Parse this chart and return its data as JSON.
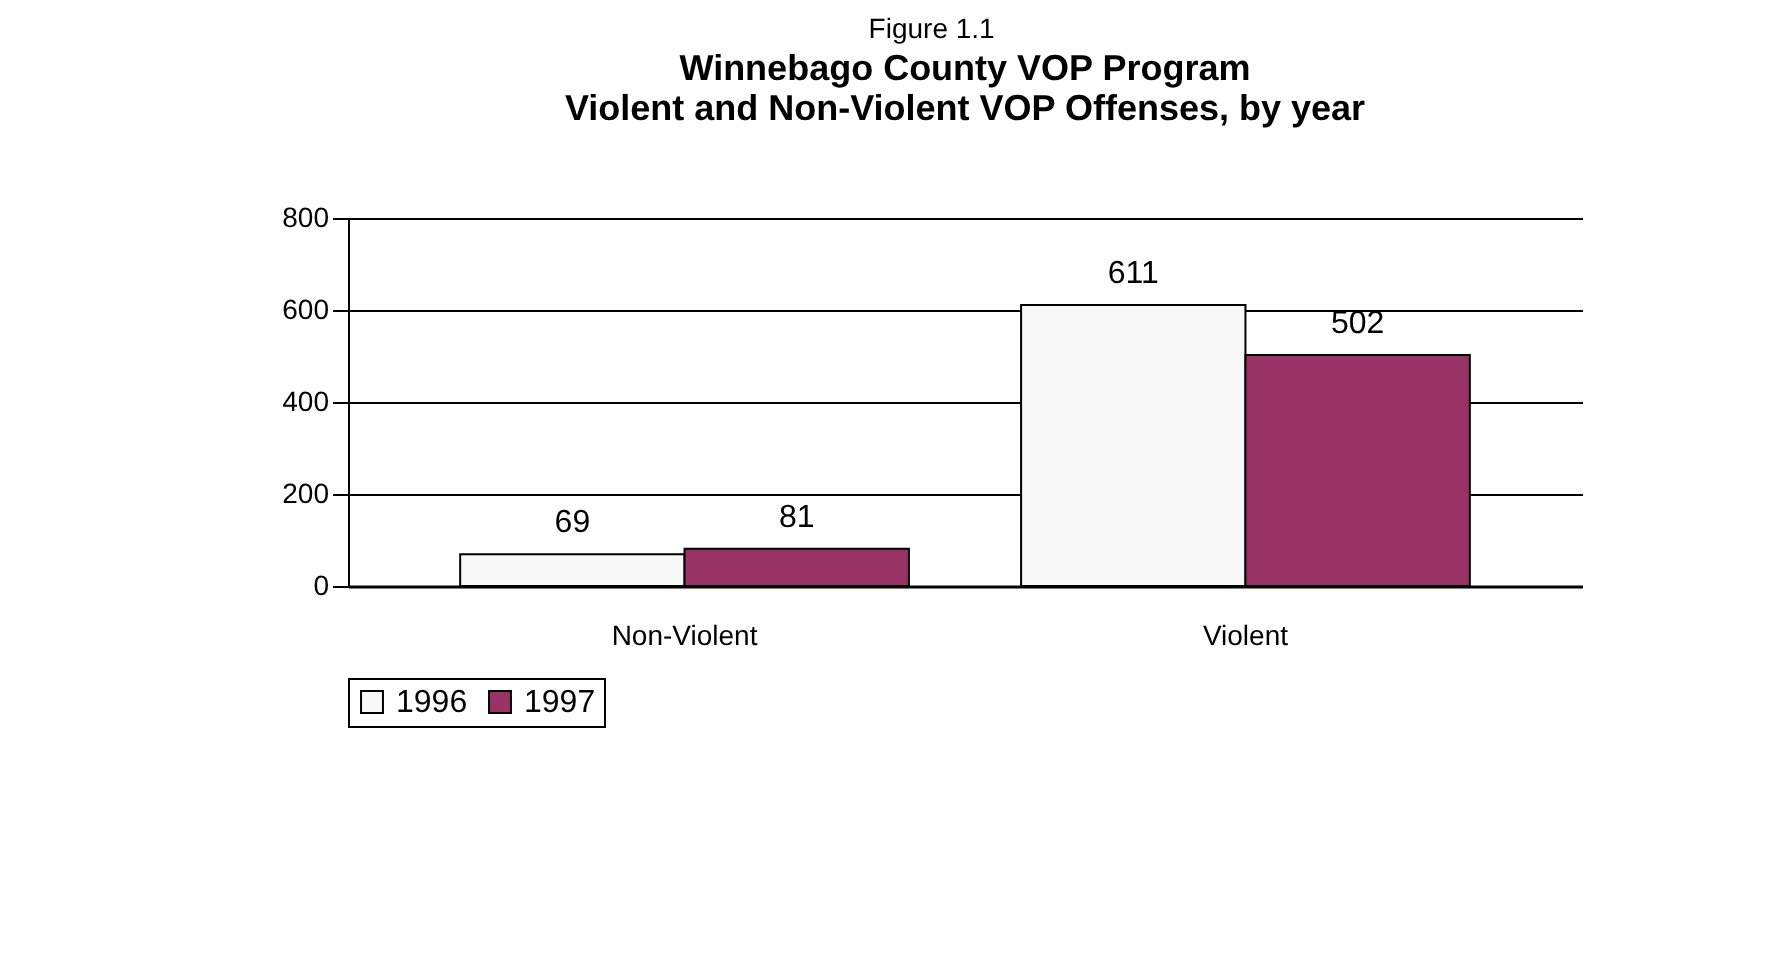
{
  "chart_data": {
    "type": "bar",
    "subtitle": "Figure 1.1",
    "title": "Winnebago County VOP Program\nViolent and Non-Violent VOP Offenses,  by year",
    "categories": [
      "Non-Violent",
      "Violent"
    ],
    "series": [
      {
        "name": "1996",
        "color": "#f8f8f8",
        "values": [
          69,
          611
        ]
      },
      {
        "name": "1997",
        "color": "#993366",
        "values": [
          81,
          502
        ]
      }
    ],
    "ylim": [
      0,
      800
    ],
    "yticks": [
      0,
      200,
      400,
      600,
      800
    ],
    "grid": "y",
    "legend": "bottom",
    "data_labels": true
  }
}
